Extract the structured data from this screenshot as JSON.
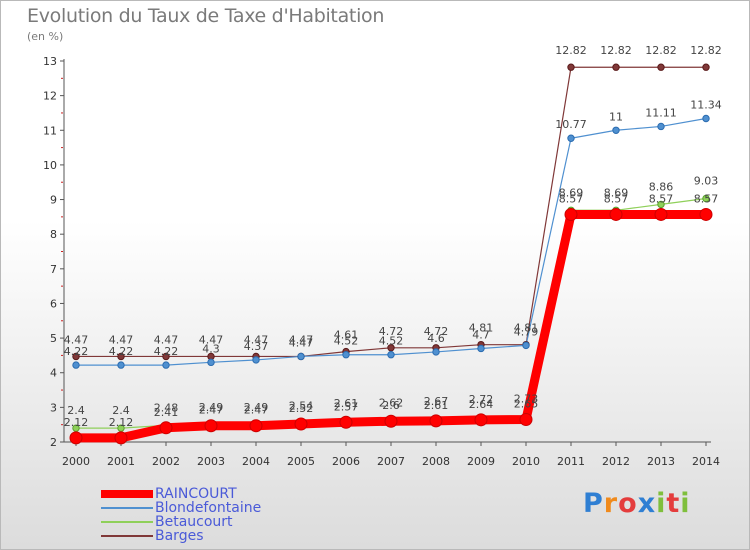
{
  "page": {
    "title": "Evolution du Taux de Taxe d'Habitation",
    "unit": "(en %)"
  },
  "logo": {
    "text": "Proxiti",
    "letters": [
      "P",
      "r",
      "o",
      "x",
      "i",
      "t",
      "i"
    ],
    "colors": [
      "#2f7fd3",
      "#f08a1c",
      "#e43c3c",
      "#2f7fd3",
      "#7fbf3c",
      "#e43c3c",
      "#7fbf3c"
    ]
  },
  "chart_data": {
    "type": "line",
    "title": "Evolution du Taux de Taxe d'Habitation",
    "ylabel": "(en %)",
    "xlabel": "",
    "x": [
      "2000",
      "2001",
      "2002",
      "2003",
      "2004",
      "2005",
      "2006",
      "2007",
      "2008",
      "2009",
      "2010",
      "2011",
      "2012",
      "2013",
      "2014"
    ],
    "ylim": [
      2,
      13
    ],
    "yticks": [
      "2",
      "3",
      "4",
      "5",
      "6",
      "7",
      "8",
      "9",
      "10",
      "11",
      "12",
      "13"
    ],
    "grid": false,
    "legend_position": "bottom-left",
    "series": [
      {
        "name": "RAINCOURT",
        "color": "#ff0000",
        "values": [
          2.12,
          2.12,
          2.41,
          2.47,
          2.47,
          2.52,
          2.57,
          2.6,
          2.61,
          2.64,
          2.65,
          8.57,
          8.57,
          8.57,
          8.57
        ],
        "labels": [
          "2.12",
          "2.12",
          "2.41",
          "2.47",
          "2.47",
          "2.52",
          "2.57",
          "2.6",
          "2.61",
          "2.64",
          "2.65",
          "8.57",
          "8.57",
          "8.57",
          "8.57"
        ]
      },
      {
        "name": "Blondefontaine",
        "color": "#4f90d0",
        "values": [
          4.22,
          4.22,
          4.22,
          4.3,
          4.37,
          4.47,
          4.52,
          4.52,
          4.6,
          4.7,
          4.79,
          10.77,
          11.0,
          11.11,
          11.34
        ],
        "labels": [
          "4.22",
          "4.22",
          "4.22",
          "4.3",
          "4.37",
          "4.47",
          "4.52",
          "4.52",
          "4.6",
          "4.7",
          "4.79",
          "10.77",
          "11",
          "11.11",
          "11.34"
        ]
      },
      {
        "name": "Betaucourt",
        "color": "#8fd05a",
        "values": [
          2.4,
          2.4,
          2.48,
          2.49,
          2.49,
          2.54,
          2.61,
          2.62,
          2.67,
          2.72,
          2.73,
          8.69,
          8.69,
          8.86,
          9.03
        ],
        "labels": [
          "2.4",
          "2.4",
          "2.48",
          "2.49",
          "2.49",
          "2.54",
          "2.61",
          "2.62",
          "2.67",
          "2.72",
          "2.73",
          "8.69",
          "8.69",
          "8.86",
          "9.03"
        ]
      },
      {
        "name": "Barges",
        "color": "#803838",
        "values": [
          4.47,
          4.47,
          4.47,
          4.47,
          4.47,
          4.47,
          4.61,
          4.72,
          4.72,
          4.81,
          4.81,
          12.82,
          12.82,
          12.82,
          12.82
        ],
        "labels": [
          "4.47",
          "4.47",
          "4.47",
          "4.47",
          "4.47",
          "4.47",
          "4.61",
          "4.72",
          "4.72",
          "4.81",
          "4.81",
          "12.82",
          "12.82",
          "12.82",
          "12.82"
        ]
      }
    ]
  }
}
